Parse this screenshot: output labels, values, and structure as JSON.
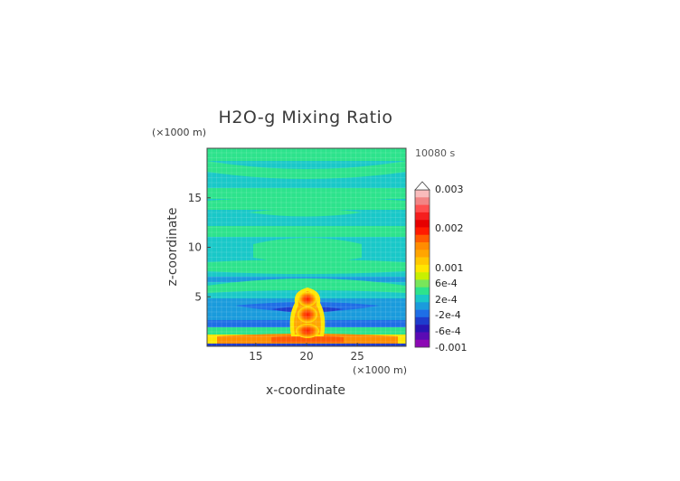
{
  "chart_data": {
    "type": "heatmap",
    "title": "H2O-g Mixing Ratio",
    "time_label": "10080 s",
    "xlabel": "x-coordinate",
    "ylabel": "z-coordinate",
    "x_unit": "(×1000 m)",
    "y_unit": "(×1000 m)",
    "xlim": [
      10.2,
      29.8
    ],
    "ylim": [
      0,
      20
    ],
    "xticks": [
      15,
      20,
      25
    ],
    "yticks": [
      5,
      10,
      15
    ],
    "colorbar": {
      "labels": [
        "0.003",
        "0.002",
        "0.001",
        "6e-4",
        "2e-4",
        "-2e-4",
        "-6e-4",
        "-0.001"
      ],
      "colors": [
        "#f9bcbc",
        "#f28585",
        "#ff4f4f",
        "#f51e1e",
        "#e60000",
        "#ff1a00",
        "#ff5a00",
        "#ff8c00",
        "#ffa500",
        "#ffc800",
        "#ffe600",
        "#c8f000",
        "#78e65a",
        "#2de38c",
        "#19c8c8",
        "#1a9bdc",
        "#1e6ee6",
        "#1e3ccd",
        "#2814b4",
        "#5a0ab4",
        "#8c08b4"
      ],
      "overflow_arrow": "top"
    },
    "field_description_bands": [
      {
        "z_range": [
          18.5,
          20
        ],
        "value": "~0"
      },
      {
        "z_range": [
          0,
          1.2
        ],
        "value": "0.002 near center"
      }
    ]
  }
}
